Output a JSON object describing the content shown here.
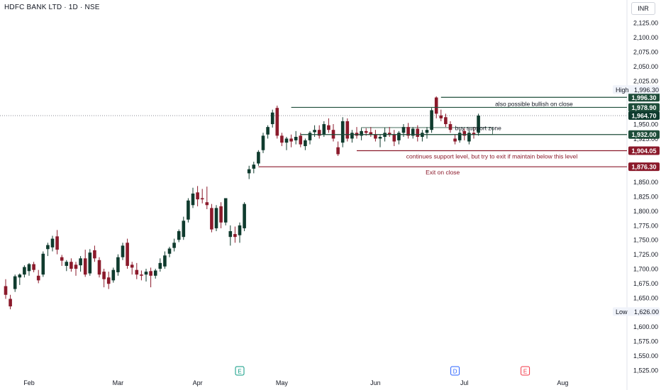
{
  "header": {
    "title": "HDFC BANK LTD · 1D · NSE",
    "currency": "INR"
  },
  "chart_data": {
    "type": "candlestick",
    "symbol": "HDFC BANK LTD",
    "interval": "1D",
    "exchange": "NSE",
    "ylim": [
      1515,
      2140
    ],
    "y_ticks": [
      {
        "v": 2125,
        "label": "2,125.00"
      },
      {
        "v": 2100,
        "label": "2,100.00"
      },
      {
        "v": 2075,
        "label": "2,075.00"
      },
      {
        "v": 2050,
        "label": "2,050.00"
      },
      {
        "v": 2025,
        "label": "2,025.00"
      },
      {
        "v": 1950,
        "label": "1,950.00"
      },
      {
        "v": 1925,
        "label": "1,925.00"
      },
      {
        "v": 1850,
        "label": "1,850.00"
      },
      {
        "v": 1825,
        "label": "1,825.00"
      },
      {
        "v": 1800,
        "label": "1,800.00"
      },
      {
        "v": 1775,
        "label": "1,775.00"
      },
      {
        "v": 1750,
        "label": "1,750.00"
      },
      {
        "v": 1725,
        "label": "1,725.00"
      },
      {
        "v": 1700,
        "label": "1,700.00"
      },
      {
        "v": 1675,
        "label": "1,675.00"
      },
      {
        "v": 1650,
        "label": "1,650.00"
      },
      {
        "v": 1600,
        "label": "1,600.00"
      },
      {
        "v": 1575,
        "label": "1,575.00"
      },
      {
        "v": 1550,
        "label": "1,550.00"
      },
      {
        "v": 1525,
        "label": "1,525.00"
      }
    ],
    "x_ticks": [
      {
        "i": 5,
        "label": "Feb"
      },
      {
        "i": 24,
        "label": "Mar"
      },
      {
        "i": 41,
        "label": "Apr"
      },
      {
        "i": 59,
        "label": "May"
      },
      {
        "i": 79,
        "label": "Jun"
      },
      {
        "i": 98,
        "label": "Jul"
      },
      {
        "i": 119,
        "label": "Aug"
      }
    ],
    "events": [
      {
        "i": 50,
        "label": "E",
        "color": "#089981"
      },
      {
        "i": 96,
        "label": "D",
        "color": "#2962ff"
      },
      {
        "i": 111,
        "label": "E",
        "color": "#f23645"
      }
    ],
    "candles": [
      {
        "o": 1670,
        "h": 1682,
        "l": 1648,
        "c": 1655
      },
      {
        "o": 1648,
        "h": 1655,
        "l": 1630,
        "c": 1635
      },
      {
        "o": 1665,
        "h": 1690,
        "l": 1660,
        "c": 1687
      },
      {
        "o": 1685,
        "h": 1692,
        "l": 1672,
        "c": 1690
      },
      {
        "o": 1690,
        "h": 1706,
        "l": 1685,
        "c": 1703
      },
      {
        "o": 1696,
        "h": 1710,
        "l": 1688,
        "c": 1708
      },
      {
        "o": 1708,
        "h": 1712,
        "l": 1694,
        "c": 1698
      },
      {
        "o": 1688,
        "h": 1698,
        "l": 1675,
        "c": 1680
      },
      {
        "o": 1690,
        "h": 1730,
        "l": 1686,
        "c": 1726
      },
      {
        "o": 1734,
        "h": 1745,
        "l": 1722,
        "c": 1741
      },
      {
        "o": 1737,
        "h": 1757,
        "l": 1730,
        "c": 1752
      },
      {
        "o": 1756,
        "h": 1767,
        "l": 1725,
        "c": 1733
      },
      {
        "o": 1720,
        "h": 1724,
        "l": 1705,
        "c": 1714
      },
      {
        "o": 1705,
        "h": 1715,
        "l": 1696,
        "c": 1712
      },
      {
        "o": 1712,
        "h": 1718,
        "l": 1695,
        "c": 1700
      },
      {
        "o": 1707,
        "h": 1712,
        "l": 1688,
        "c": 1700
      },
      {
        "o": 1706,
        "h": 1722,
        "l": 1695,
        "c": 1718
      },
      {
        "o": 1718,
        "h": 1733,
        "l": 1686,
        "c": 1690
      },
      {
        "o": 1692,
        "h": 1734,
        "l": 1688,
        "c": 1728
      },
      {
        "o": 1732,
        "h": 1740,
        "l": 1712,
        "c": 1718
      },
      {
        "o": 1715,
        "h": 1720,
        "l": 1685,
        "c": 1690
      },
      {
        "o": 1695,
        "h": 1700,
        "l": 1668,
        "c": 1682
      },
      {
        "o": 1685,
        "h": 1695,
        "l": 1665,
        "c": 1674
      },
      {
        "o": 1680,
        "h": 1702,
        "l": 1676,
        "c": 1698
      },
      {
        "o": 1694,
        "h": 1725,
        "l": 1688,
        "c": 1720
      },
      {
        "o": 1720,
        "h": 1745,
        "l": 1715,
        "c": 1740
      },
      {
        "o": 1745,
        "h": 1752,
        "l": 1700,
        "c": 1705
      },
      {
        "o": 1707,
        "h": 1712,
        "l": 1690,
        "c": 1702
      },
      {
        "o": 1698,
        "h": 1710,
        "l": 1682,
        "c": 1690
      },
      {
        "o": 1690,
        "h": 1697,
        "l": 1680,
        "c": 1688
      },
      {
        "o": 1690,
        "h": 1700,
        "l": 1678,
        "c": 1695
      },
      {
        "o": 1696,
        "h": 1702,
        "l": 1668,
        "c": 1688
      },
      {
        "o": 1688,
        "h": 1700,
        "l": 1683,
        "c": 1697
      },
      {
        "o": 1700,
        "h": 1718,
        "l": 1695,
        "c": 1710
      },
      {
        "o": 1704,
        "h": 1730,
        "l": 1700,
        "c": 1723
      },
      {
        "o": 1726,
        "h": 1738,
        "l": 1720,
        "c": 1735
      },
      {
        "o": 1736,
        "h": 1752,
        "l": 1730,
        "c": 1745
      },
      {
        "o": 1750,
        "h": 1768,
        "l": 1746,
        "c": 1765
      },
      {
        "o": 1755,
        "h": 1790,
        "l": 1750,
        "c": 1783
      },
      {
        "o": 1785,
        "h": 1822,
        "l": 1780,
        "c": 1818
      },
      {
        "o": 1810,
        "h": 1840,
        "l": 1805,
        "c": 1830
      },
      {
        "o": 1832,
        "h": 1843,
        "l": 1808,
        "c": 1820
      },
      {
        "o": 1822,
        "h": 1838,
        "l": 1813,
        "c": 1820
      },
      {
        "o": 1815,
        "h": 1842,
        "l": 1803,
        "c": 1810
      },
      {
        "o": 1805,
        "h": 1812,
        "l": 1763,
        "c": 1768
      },
      {
        "o": 1770,
        "h": 1810,
        "l": 1765,
        "c": 1805
      },
      {
        "o": 1808,
        "h": 1815,
        "l": 1770,
        "c": 1780
      },
      {
        "o": 1780,
        "h": 1822,
        "l": 1775,
        "c": 1822
      },
      {
        "o": 1755,
        "h": 1775,
        "l": 1740,
        "c": 1765
      },
      {
        "o": 1760,
        "h": 1773,
        "l": 1745,
        "c": 1755
      },
      {
        "o": 1758,
        "h": 1780,
        "l": 1745,
        "c": 1775
      },
      {
        "o": 1770,
        "h": 1815,
        "l": 1765,
        "c": 1812
      },
      {
        "o": 1865,
        "h": 1878,
        "l": 1855,
        "c": 1872
      },
      {
        "o": 1873,
        "h": 1885,
        "l": 1865,
        "c": 1880
      },
      {
        "o": 1882,
        "h": 1905,
        "l": 1878,
        "c": 1902
      },
      {
        "o": 1905,
        "h": 1935,
        "l": 1900,
        "c": 1930
      },
      {
        "o": 1932,
        "h": 1948,
        "l": 1925,
        "c": 1945
      },
      {
        "o": 1950,
        "h": 1975,
        "l": 1944,
        "c": 1970
      },
      {
        "o": 1978,
        "h": 1982,
        "l": 1925,
        "c": 1930
      },
      {
        "o": 1930,
        "h": 1935,
        "l": 1912,
        "c": 1918
      },
      {
        "o": 1918,
        "h": 1928,
        "l": 1905,
        "c": 1925
      },
      {
        "o": 1925,
        "h": 1932,
        "l": 1910,
        "c": 1920
      },
      {
        "o": 1922,
        "h": 1938,
        "l": 1915,
        "c": 1928
      },
      {
        "o": 1930,
        "h": 1935,
        "l": 1910,
        "c": 1915
      },
      {
        "o": 1912,
        "h": 1925,
        "l": 1905,
        "c": 1922
      },
      {
        "o": 1922,
        "h": 1938,
        "l": 1915,
        "c": 1935
      },
      {
        "o": 1936,
        "h": 1948,
        "l": 1928,
        "c": 1940
      },
      {
        "o": 1940,
        "h": 1948,
        "l": 1925,
        "c": 1930
      },
      {
        "o": 1932,
        "h": 1955,
        "l": 1928,
        "c": 1950
      },
      {
        "o": 1948,
        "h": 1960,
        "l": 1935,
        "c": 1940
      },
      {
        "o": 1940,
        "h": 1950,
        "l": 1920,
        "c": 1925
      },
      {
        "o": 1910,
        "h": 1920,
        "l": 1895,
        "c": 1898
      },
      {
        "o": 1918,
        "h": 1962,
        "l": 1910,
        "c": 1955
      },
      {
        "o": 1955,
        "h": 1960,
        "l": 1920,
        "c": 1925
      },
      {
        "o": 1925,
        "h": 1940,
        "l": 1918,
        "c": 1935
      },
      {
        "o": 1935,
        "h": 1945,
        "l": 1925,
        "c": 1930
      },
      {
        "o": 1930,
        "h": 1942,
        "l": 1922,
        "c": 1938
      },
      {
        "o": 1938,
        "h": 1943,
        "l": 1930,
        "c": 1935
      },
      {
        "o": 1936,
        "h": 1945,
        "l": 1928,
        "c": 1932
      },
      {
        "o": 1932,
        "h": 1940,
        "l": 1920,
        "c": 1925
      },
      {
        "o": 1925,
        "h": 1932,
        "l": 1910,
        "c": 1928
      },
      {
        "o": 1928,
        "h": 1944,
        "l": 1920,
        "c": 1935
      },
      {
        "o": 1935,
        "h": 1945,
        "l": 1928,
        "c": 1932
      },
      {
        "o": 1932,
        "h": 1940,
        "l": 1912,
        "c": 1920
      },
      {
        "o": 1922,
        "h": 1938,
        "l": 1915,
        "c": 1935
      },
      {
        "o": 1935,
        "h": 1950,
        "l": 1928,
        "c": 1945
      },
      {
        "o": 1945,
        "h": 1952,
        "l": 1925,
        "c": 1930
      },
      {
        "o": 1930,
        "h": 1945,
        "l": 1925,
        "c": 1942
      },
      {
        "o": 1942,
        "h": 1948,
        "l": 1920,
        "c": 1928
      },
      {
        "o": 1928,
        "h": 1940,
        "l": 1920,
        "c": 1935
      },
      {
        "o": 1935,
        "h": 1945,
        "l": 1925,
        "c": 1940
      },
      {
        "o": 1940,
        "h": 1978,
        "l": 1935,
        "c": 1974
      },
      {
        "o": 1996,
        "h": 1998,
        "l": 1960,
        "c": 1968
      },
      {
        "o": 1965,
        "h": 1975,
        "l": 1955,
        "c": 1960
      },
      {
        "o": 1962,
        "h": 1968,
        "l": 1945,
        "c": 1950
      },
      {
        "o": 1950,
        "h": 1955,
        "l": 1935,
        "c": 1940
      },
      {
        "o": 1925,
        "h": 1932,
        "l": 1915,
        "c": 1920
      },
      {
        "o": 1922,
        "h": 1940,
        "l": 1918,
        "c": 1935
      },
      {
        "o": 1938,
        "h": 1942,
        "l": 1922,
        "c": 1930
      },
      {
        "o": 1920,
        "h": 1940,
        "l": 1915,
        "c": 1935
      },
      {
        "o": 1935,
        "h": 1945,
        "l": 1925,
        "c": 1932
      },
      {
        "o": 1935,
        "h": 1968,
        "l": 1930,
        "c": 1964.7
      }
    ],
    "levels": [
      {
        "price": 1996.3,
        "label": "1,996.30",
        "i_from": 93,
        "i_to": 127,
        "color": "#1e4d3a",
        "text": "also possible bullish on close",
        "text_color": "#131722"
      },
      {
        "price": 1978.9,
        "label": "1,978.90",
        "i_from": 61,
        "i_to": 127,
        "color": "#1e4d3a",
        "text": "",
        "text_color": "#131722"
      },
      {
        "price": 1932.0,
        "label": "1,932.00",
        "i_from": 63,
        "i_to": 127,
        "color": "#1e4d3a",
        "text": "buy support zone",
        "text_color": "#131722"
      },
      {
        "price": 1904.05,
        "label": "1,904.05",
        "i_from": 75,
        "i_to": 127,
        "color": "#8b1a2b",
        "text": "continues support level, but try to exit if maintain below this level",
        "text_color": "#8b1a2b"
      },
      {
        "price": 1876.3,
        "label": "1,876.30",
        "i_from": 54,
        "i_to": 127,
        "color": "#8b1a2b",
        "text": "Exit on close",
        "text_color": "#8b1a2b"
      }
    ],
    "support_box": {
      "top": 1944,
      "bottom": 1932,
      "i_from": 76,
      "i_to": 104
    },
    "last_price": {
      "price": 1964.7,
      "label": "1,964.70"
    },
    "high": {
      "price": 1996.3,
      "tag": "High",
      "label": "1,996.30"
    },
    "low": {
      "price": 1626.0,
      "tag": "Low",
      "label": "1,626.00"
    },
    "colors": {
      "up": "#0f3b2e",
      "down": "#8b1a2b",
      "axis_text": "#131722",
      "grid": "#f0f3fa",
      "dark_tag": "#131722"
    }
  }
}
